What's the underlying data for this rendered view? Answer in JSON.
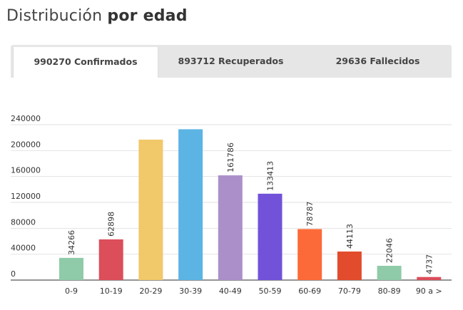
{
  "header": {
    "title_light": "Distribución",
    "title_bold": "por edad"
  },
  "tabs": [
    {
      "label": "990270 Confirmados",
      "active": true
    },
    {
      "label": "893712 Recuperados",
      "active": false
    },
    {
      "label": "29636 Fallecidos",
      "active": false
    }
  ],
  "chart_data": {
    "type": "bar",
    "title": "",
    "xlabel": "",
    "ylabel": "",
    "ylim": [
      0,
      240000
    ],
    "yticks": [
      "240000",
      "200000",
      "160000",
      "120000",
      "80000",
      "40000",
      "0"
    ],
    "categories": [
      "0-9",
      "10-19",
      "20-29",
      "30-39",
      "40-49",
      "50-59",
      "60-69",
      "70-79",
      "80-89",
      "90 a >"
    ],
    "values": [
      34266,
      62898,
      217000,
      233000,
      161786,
      133413,
      78787,
      44113,
      22046,
      4737
    ],
    "data_labels": [
      "34266",
      "62898",
      "",
      "",
      "161786",
      "133413",
      "78787",
      "44113",
      "22046",
      "4737"
    ],
    "colors": [
      "#8fcba8",
      "#dc4e5a",
      "#f1c86a",
      "#5cb4e4",
      "#ab8fc9",
      "#7152d8",
      "#fc6a3a",
      "#e24c2c",
      "#8fcba8",
      "#dc4e5a"
    ],
    "grid": true,
    "legend": "none"
  }
}
